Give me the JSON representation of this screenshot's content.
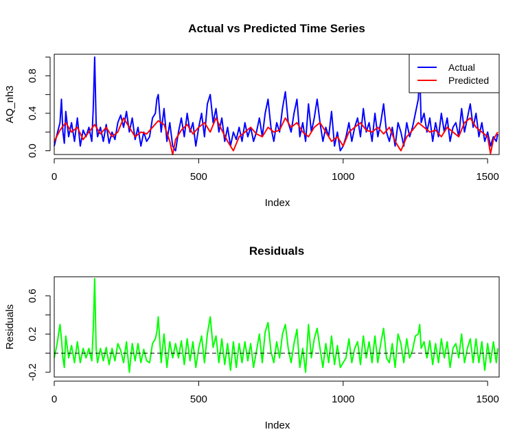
{
  "chart_data": [
    {
      "type": "line",
      "title": "Actual vs Predicted Time Series",
      "xlabel": "Index",
      "ylabel": "AQ_nh3",
      "xlim": [
        0,
        1540
      ],
      "ylim": [
        -0.04,
        1.03
      ],
      "xticks": [
        0,
        500,
        1000,
        1500
      ],
      "xtick_labels": [
        "0",
        "500",
        "1000",
        "1500"
      ],
      "yticks": [
        0.0,
        0.2,
        0.4,
        0.6,
        0.8,
        1.0
      ],
      "ytick_labels": [
        "0.0",
        "",
        "0.4",
        "",
        "0.8",
        ""
      ],
      "legend": {
        "position": "top-right",
        "entries": [
          "Actual",
          "Predicted"
        ]
      },
      "series": [
        {
          "name": "Actual",
          "color": "#0000ff",
          "x": [
            0,
            10,
            20,
            25,
            30,
            35,
            40,
            50,
            60,
            70,
            80,
            90,
            100,
            110,
            120,
            130,
            135,
            140,
            145,
            150,
            160,
            170,
            180,
            190,
            200,
            210,
            220,
            230,
            240,
            250,
            260,
            270,
            280,
            290,
            300,
            310,
            320,
            330,
            340,
            350,
            355,
            360,
            370,
            380,
            390,
            400,
            410,
            420,
            430,
            440,
            450,
            460,
            470,
            480,
            490,
            500,
            510,
            520,
            530,
            540,
            550,
            560,
            570,
            580,
            590,
            600,
            610,
            620,
            630,
            640,
            650,
            660,
            670,
            680,
            690,
            700,
            710,
            720,
            730,
            740,
            750,
            760,
            770,
            780,
            790,
            800,
            810,
            820,
            830,
            840,
            850,
            860,
            870,
            880,
            890,
            900,
            910,
            920,
            930,
            940,
            950,
            960,
            970,
            980,
            990,
            1000,
            1010,
            1020,
            1030,
            1040,
            1050,
            1060,
            1070,
            1080,
            1090,
            1100,
            1110,
            1120,
            1130,
            1140,
            1150,
            1160,
            1170,
            1180,
            1190,
            1200,
            1210,
            1220,
            1230,
            1240,
            1250,
            1260,
            1265,
            1270,
            1280,
            1290,
            1300,
            1310,
            1320,
            1330,
            1340,
            1350,
            1360,
            1370,
            1380,
            1390,
            1400,
            1410,
            1420,
            1430,
            1440,
            1450,
            1460,
            1470,
            1480,
            1490,
            1500,
            1510,
            1520,
            1530,
            1535
          ],
          "y": [
            0.05,
            0.18,
            0.3,
            0.55,
            0.2,
            0.08,
            0.42,
            0.15,
            0.3,
            0.1,
            0.35,
            0.05,
            0.22,
            0.15,
            0.25,
            0.1,
            0.45,
            1.0,
            0.3,
            0.15,
            0.25,
            0.1,
            0.28,
            0.08,
            0.2,
            0.12,
            0.3,
            0.38,
            0.25,
            0.42,
            0.2,
            0.35,
            0.12,
            0.25,
            0.05,
            0.2,
            0.1,
            0.15,
            0.35,
            0.4,
            0.55,
            0.6,
            0.2,
            0.45,
            0.1,
            0.3,
            0.05,
            0.0,
            0.2,
            0.35,
            0.15,
            0.4,
            0.2,
            0.3,
            0.05,
            0.25,
            0.4,
            0.15,
            0.5,
            0.6,
            0.3,
            0.45,
            0.2,
            0.35,
            0.1,
            0.25,
            0.05,
            0.2,
            0.12,
            0.25,
            0.1,
            0.3,
            0.15,
            0.25,
            0.1,
            0.2,
            0.35,
            0.15,
            0.4,
            0.55,
            0.25,
            0.1,
            0.3,
            0.2,
            0.45,
            0.63,
            0.3,
            0.2,
            0.4,
            0.55,
            0.15,
            0.3,
            0.1,
            0.5,
            0.2,
            0.35,
            0.55,
            0.3,
            0.1,
            0.25,
            0.15,
            0.42,
            0.05,
            0.2,
            0.0,
            0.05,
            0.15,
            0.3,
            0.1,
            0.25,
            0.35,
            0.15,
            0.45,
            0.2,
            0.3,
            0.1,
            0.4,
            0.15,
            0.3,
            0.5,
            0.2,
            0.1,
            0.25,
            0.05,
            0.3,
            0.2,
            0.05,
            0.3,
            0.15,
            0.25,
            0.4,
            0.55,
            0.85,
            0.3,
            0.4,
            0.2,
            0.35,
            0.1,
            0.3,
            0.15,
            0.4,
            0.2,
            0.35,
            0.1,
            0.25,
            0.3,
            0.15,
            0.45,
            0.2,
            0.35,
            0.5,
            0.25,
            0.4,
            0.15,
            0.3,
            0.1,
            0.2,
            0.05,
            0.15,
            0.1,
            0.18
          ]
        },
        {
          "name": "Predicted",
          "color": "#ff0000",
          "x": [
            0,
            20,
            40,
            60,
            80,
            100,
            120,
            140,
            160,
            180,
            200,
            220,
            240,
            260,
            280,
            300,
            320,
            340,
            360,
            380,
            400,
            410,
            420,
            440,
            460,
            480,
            500,
            520,
            540,
            560,
            580,
            600,
            620,
            640,
            660,
            680,
            700,
            720,
            740,
            760,
            780,
            800,
            820,
            840,
            860,
            880,
            900,
            920,
            940,
            960,
            980,
            1000,
            1020,
            1040,
            1060,
            1080,
            1100,
            1120,
            1140,
            1160,
            1180,
            1200,
            1220,
            1240,
            1260,
            1280,
            1300,
            1320,
            1340,
            1360,
            1380,
            1400,
            1420,
            1440,
            1460,
            1480,
            1500,
            1510,
            1520,
            1535
          ],
          "y": [
            0.1,
            0.22,
            0.3,
            0.2,
            0.25,
            0.12,
            0.2,
            0.28,
            0.18,
            0.25,
            0.15,
            0.2,
            0.35,
            0.25,
            0.15,
            0.2,
            0.18,
            0.25,
            0.32,
            0.28,
            0.1,
            -0.04,
            0.12,
            0.22,
            0.28,
            0.18,
            0.25,
            0.3,
            0.2,
            0.35,
            0.22,
            0.1,
            0.0,
            0.15,
            0.2,
            0.25,
            0.18,
            0.15,
            0.25,
            0.2,
            0.22,
            0.35,
            0.25,
            0.3,
            0.2,
            0.15,
            0.25,
            0.3,
            0.2,
            0.1,
            0.15,
            0.05,
            0.2,
            0.25,
            0.3,
            0.22,
            0.2,
            0.25,
            0.18,
            0.25,
            0.1,
            0.0,
            0.15,
            0.22,
            0.3,
            0.25,
            0.2,
            0.22,
            0.15,
            0.25,
            0.2,
            0.15,
            0.3,
            0.35,
            0.25,
            0.2,
            0.15,
            -0.03,
            0.12,
            0.2
          ]
        }
      ]
    },
    {
      "type": "line",
      "title": "Residuals",
      "xlabel": "Index",
      "ylabel": "Residuals",
      "xlim": [
        0,
        1540
      ],
      "ylim": [
        -0.25,
        0.8
      ],
      "xticks": [
        0,
        500,
        1000,
        1500
      ],
      "xtick_labels": [
        "0",
        "500",
        "1000",
        "1500"
      ],
      "yticks": [
        -0.2,
        0.0,
        0.2,
        0.4,
        0.6
      ],
      "ytick_labels": [
        "-0.2",
        "",
        "0.2",
        "",
        "0.6"
      ],
      "reference_line": {
        "y": 0,
        "style": "dashed"
      },
      "series": [
        {
          "color": "#00ff00",
          "x": [
            0,
            10,
            20,
            25,
            30,
            35,
            40,
            50,
            60,
            70,
            80,
            90,
            100,
            110,
            120,
            130,
            135,
            140,
            145,
            150,
            160,
            170,
            180,
            190,
            200,
            210,
            220,
            230,
            240,
            250,
            260,
            270,
            280,
            290,
            300,
            310,
            320,
            330,
            340,
            350,
            355,
            360,
            370,
            380,
            390,
            400,
            410,
            420,
            430,
            440,
            450,
            460,
            470,
            480,
            490,
            500,
            510,
            520,
            530,
            540,
            550,
            560,
            570,
            580,
            590,
            600,
            610,
            620,
            630,
            640,
            650,
            660,
            670,
            680,
            690,
            700,
            710,
            720,
            730,
            740,
            750,
            760,
            770,
            780,
            790,
            800,
            810,
            820,
            830,
            840,
            850,
            860,
            870,
            880,
            890,
            900,
            910,
            920,
            930,
            940,
            950,
            960,
            970,
            980,
            990,
            1000,
            1010,
            1020,
            1030,
            1040,
            1050,
            1060,
            1070,
            1080,
            1090,
            1100,
            1110,
            1120,
            1130,
            1140,
            1150,
            1160,
            1170,
            1180,
            1190,
            1200,
            1210,
            1220,
            1230,
            1240,
            1250,
            1260,
            1265,
            1270,
            1280,
            1290,
            1300,
            1310,
            1320,
            1330,
            1340,
            1350,
            1360,
            1370,
            1380,
            1390,
            1400,
            1410,
            1420,
            1430,
            1440,
            1450,
            1460,
            1470,
            1480,
            1490,
            1500,
            1510,
            1520,
            1530,
            1535
          ],
          "y": [
            -0.05,
            0.1,
            0.3,
            0.15,
            -0.05,
            -0.15,
            0.18,
            -0.05,
            0.08,
            -0.1,
            0.12,
            -0.1,
            0.05,
            -0.05,
            0.05,
            -0.08,
            0.25,
            0.78,
            0.05,
            -0.1,
            0.05,
            -0.08,
            0.06,
            -0.12,
            0.05,
            -0.08,
            0.1,
            0.03,
            -0.1,
            0.12,
            -0.2,
            0.1,
            -0.08,
            0.1,
            -0.1,
            0.04,
            -0.08,
            -0.1,
            0.1,
            0.15,
            0.22,
            0.38,
            -0.1,
            0.2,
            -0.15,
            0.12,
            -0.05,
            0.1,
            -0.05,
            0.13,
            -0.12,
            0.15,
            -0.08,
            0.12,
            -0.15,
            0.05,
            0.18,
            -0.1,
            0.2,
            0.38,
            0.06,
            0.18,
            -0.1,
            0.15,
            -0.12,
            0.1,
            -0.18,
            0.12,
            -0.15,
            0.1,
            -0.1,
            0.12,
            -0.08,
            0.1,
            -0.15,
            0.02,
            0.2,
            -0.1,
            0.22,
            0.32,
            0.02,
            -0.1,
            0.12,
            -0.05,
            0.2,
            0.3,
            0.05,
            -0.1,
            0.1,
            0.25,
            -0.15,
            0.05,
            -0.2,
            0.3,
            -0.05,
            0.15,
            0.26,
            0.05,
            -0.15,
            0.1,
            -0.1,
            0.18,
            -0.12,
            0.08,
            -0.15,
            -0.1,
            -0.05,
            0.15,
            -0.1,
            0.05,
            0.12,
            -0.12,
            0.18,
            -0.05,
            0.12,
            -0.1,
            0.18,
            -0.1,
            0.1,
            0.26,
            -0.05,
            -0.1,
            0.1,
            -0.15,
            0.2,
            0.1,
            -0.1,
            0.15,
            -0.05,
            0.03,
            0.18,
            0.2,
            0.3,
            0.05,
            0.12,
            -0.05,
            0.13,
            -0.12,
            0.1,
            -0.1,
            0.15,
            -0.05,
            0.12,
            -0.15,
            0.05,
            0.1,
            -0.05,
            0.2,
            -0.1,
            0.05,
            0.15,
            -0.1,
            0.15,
            -0.1,
            0.12,
            -0.18,
            0.1,
            -0.1,
            0.12,
            -0.1,
            0.05
          ]
        }
      ]
    }
  ]
}
